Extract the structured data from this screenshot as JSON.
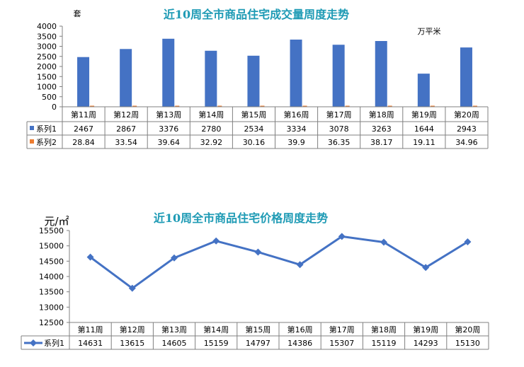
{
  "chart_data": [
    {
      "type": "bar",
      "title": "近10周全市商品住宅成交量周度走势",
      "ylabel": "套",
      "ylabel_secondary": "万平米",
      "ylim": [
        0,
        4000
      ],
      "yticks": [
        "0",
        "500",
        "1000",
        "1500",
        "2000",
        "2500",
        "3000",
        "3500",
        "4000"
      ],
      "grid": false,
      "legend": "data-table",
      "categories": [
        "第11周",
        "第12周",
        "第13周",
        "第14周",
        "第15周",
        "第16周",
        "第17周",
        "第18周",
        "第19周",
        "第20周"
      ],
      "series": [
        {
          "name": "系列1",
          "color": "#4472C4",
          "values": [
            2467,
            2867,
            3376,
            2780,
            2534,
            3334,
            3078,
            3263,
            1644,
            2943
          ],
          "labels": [
            "2467",
            "2867",
            "3376",
            "2780",
            "2534",
            "3334",
            "3078",
            "3263",
            "1644",
            "2943"
          ]
        },
        {
          "name": "系列2",
          "color": "#ED7D31",
          "values": [
            28.84,
            33.54,
            39.64,
            32.92,
            30.16,
            39.9,
            36.35,
            38.17,
            19.11,
            34.96
          ],
          "labels": [
            "28.84",
            "33.54",
            "39.64",
            "32.92",
            "30.16",
            "39.9",
            "36.35",
            "38.17",
            "19.11",
            "34.96"
          ]
        }
      ]
    },
    {
      "type": "line",
      "title": "近10周全市商品住宅价格周度走势",
      "ylabel": "元/㎡",
      "ylim": [
        12500,
        15500
      ],
      "yticks": [
        "12500",
        "13000",
        "13500",
        "14000",
        "14500",
        "15000",
        "15500"
      ],
      "grid": false,
      "legend": "data-table",
      "categories": [
        "第11周",
        "第12周",
        "第13周",
        "第14周",
        "第15周",
        "第16周",
        "第17周",
        "第18周",
        "第19周",
        "第20周"
      ],
      "series": [
        {
          "name": "系列1",
          "color": "#4472C4",
          "values": [
            14631,
            13615,
            14605,
            15159,
            14797,
            14386,
            15307,
            15119,
            14293,
            15130
          ],
          "labels": [
            "14631",
            "13615",
            "14605",
            "15159",
            "14797",
            "14386",
            "15307",
            "15119",
            "14293",
            "15130"
          ]
        }
      ]
    }
  ]
}
